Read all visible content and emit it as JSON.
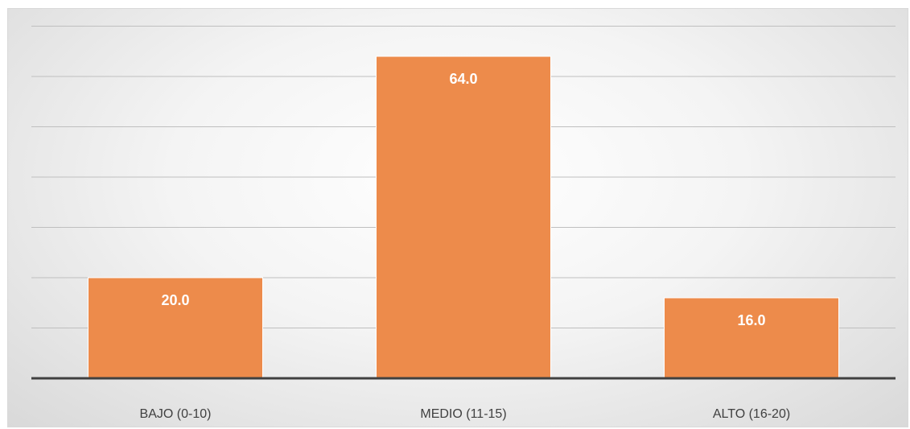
{
  "chart_data": {
    "type": "bar",
    "categories": [
      "BAJO (0-10)",
      "MEDIO (11-15)",
      "ALTO (16-20)"
    ],
    "series": [
      {
        "values": [
          20.0,
          64.0,
          16.0
        ]
      }
    ],
    "data_labels": [
      "20.0",
      "64.0",
      "16.0"
    ],
    "title": "",
    "xlabel": "",
    "ylabel": "",
    "ylim": [
      0,
      70
    ],
    "y_grid_step": 10,
    "grid": true,
    "legend": "none",
    "colors": {
      "bar": "#ed8b4b",
      "bar_edge": "#ffffff",
      "grid": "#bfbfbf",
      "axis": "#404040"
    }
  }
}
